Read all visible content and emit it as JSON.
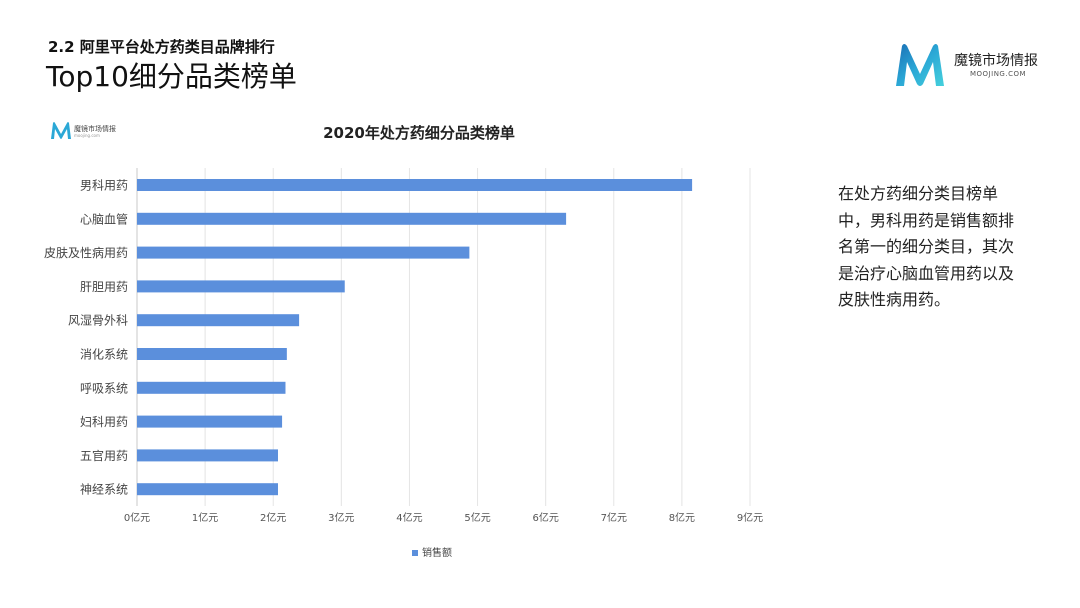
{
  "header": {
    "section": "2.2 阿里平台处方药类目品牌排行",
    "title": "Top10细分品类榜单"
  },
  "brand": {
    "name": "魔镜市场情报",
    "url": "MOOJING.COM",
    "colors": [
      "#1a6fb5",
      "#2ba8d6",
      "#45d0dc"
    ]
  },
  "mini_logo": {
    "name": "魔镜市场情报",
    "url": "moojing.com"
  },
  "description": "在处方药细分类目榜单中，男科用药是销售额排名第一的细分类目，其次是治疗心脑血管用药以及皮肤性病用药。",
  "chart_data": {
    "type": "bar",
    "orientation": "horizontal",
    "title": "2020年处方药细分品类榜单",
    "categories": [
      "男科用药",
      "心脑血管",
      "皮肤及性病用药",
      "肝胆用药",
      "风湿骨外科",
      "消化系统",
      "呼吸系统",
      "妇科用药",
      "五官用药",
      "神经系统"
    ],
    "series": [
      {
        "name": "销售额",
        "values": [
          8.15,
          6.3,
          4.88,
          3.05,
          2.38,
          2.2,
          2.18,
          2.13,
          2.07,
          2.07
        ],
        "color": "#5b8fdc"
      }
    ],
    "x_ticks": [
      "0亿元",
      "1亿元",
      "2亿元",
      "3亿元",
      "4亿元",
      "5亿元",
      "6亿元",
      "7亿元",
      "8亿元",
      "9亿元"
    ],
    "xlim": [
      0,
      9
    ],
    "grid": "vertical",
    "legend_position": "bottom-center"
  }
}
